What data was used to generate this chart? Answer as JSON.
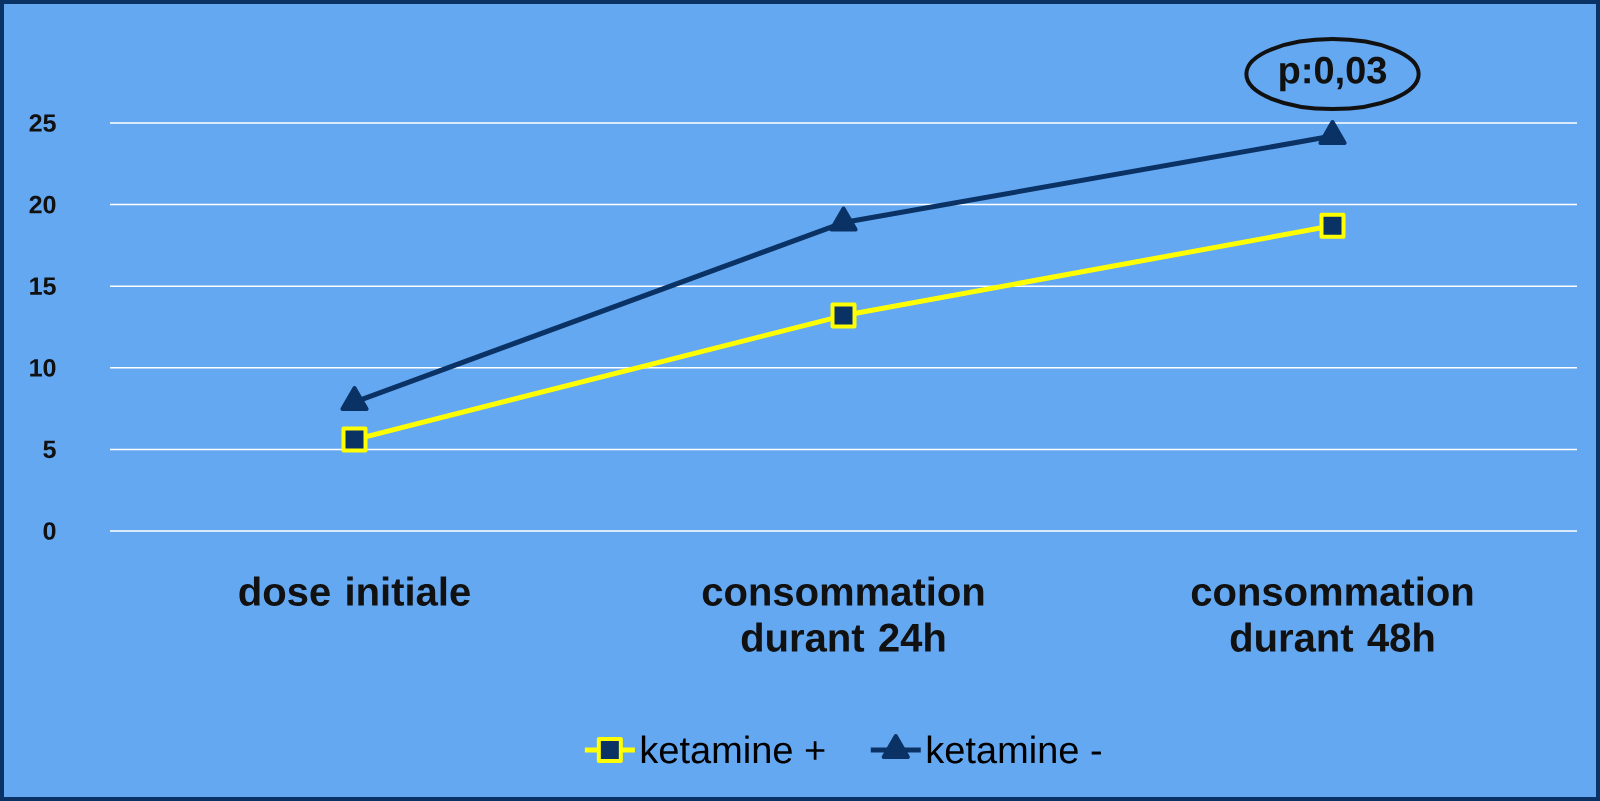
{
  "chart_data": {
    "type": "line",
    "categories": [
      "dose initiale",
      "consommation durant 24h",
      "consommation durant 48h"
    ],
    "series": [
      {
        "name": "ketamine +",
        "color": "#ffff00",
        "marker": "square",
        "values": [
          5.6,
          13.2,
          18.7
        ]
      },
      {
        "name": "ketamine -",
        "color": "#0a3264",
        "marker": "triangle",
        "values": [
          7.9,
          18.9,
          24.2
        ]
      }
    ],
    "ylim": [
      0,
      25
    ],
    "yticks": [
      0,
      5,
      10,
      15,
      20,
      25
    ],
    "grid": "y",
    "legend": "bottom",
    "line_style": "solid",
    "annotations": [
      "p:0,03"
    ]
  }
}
